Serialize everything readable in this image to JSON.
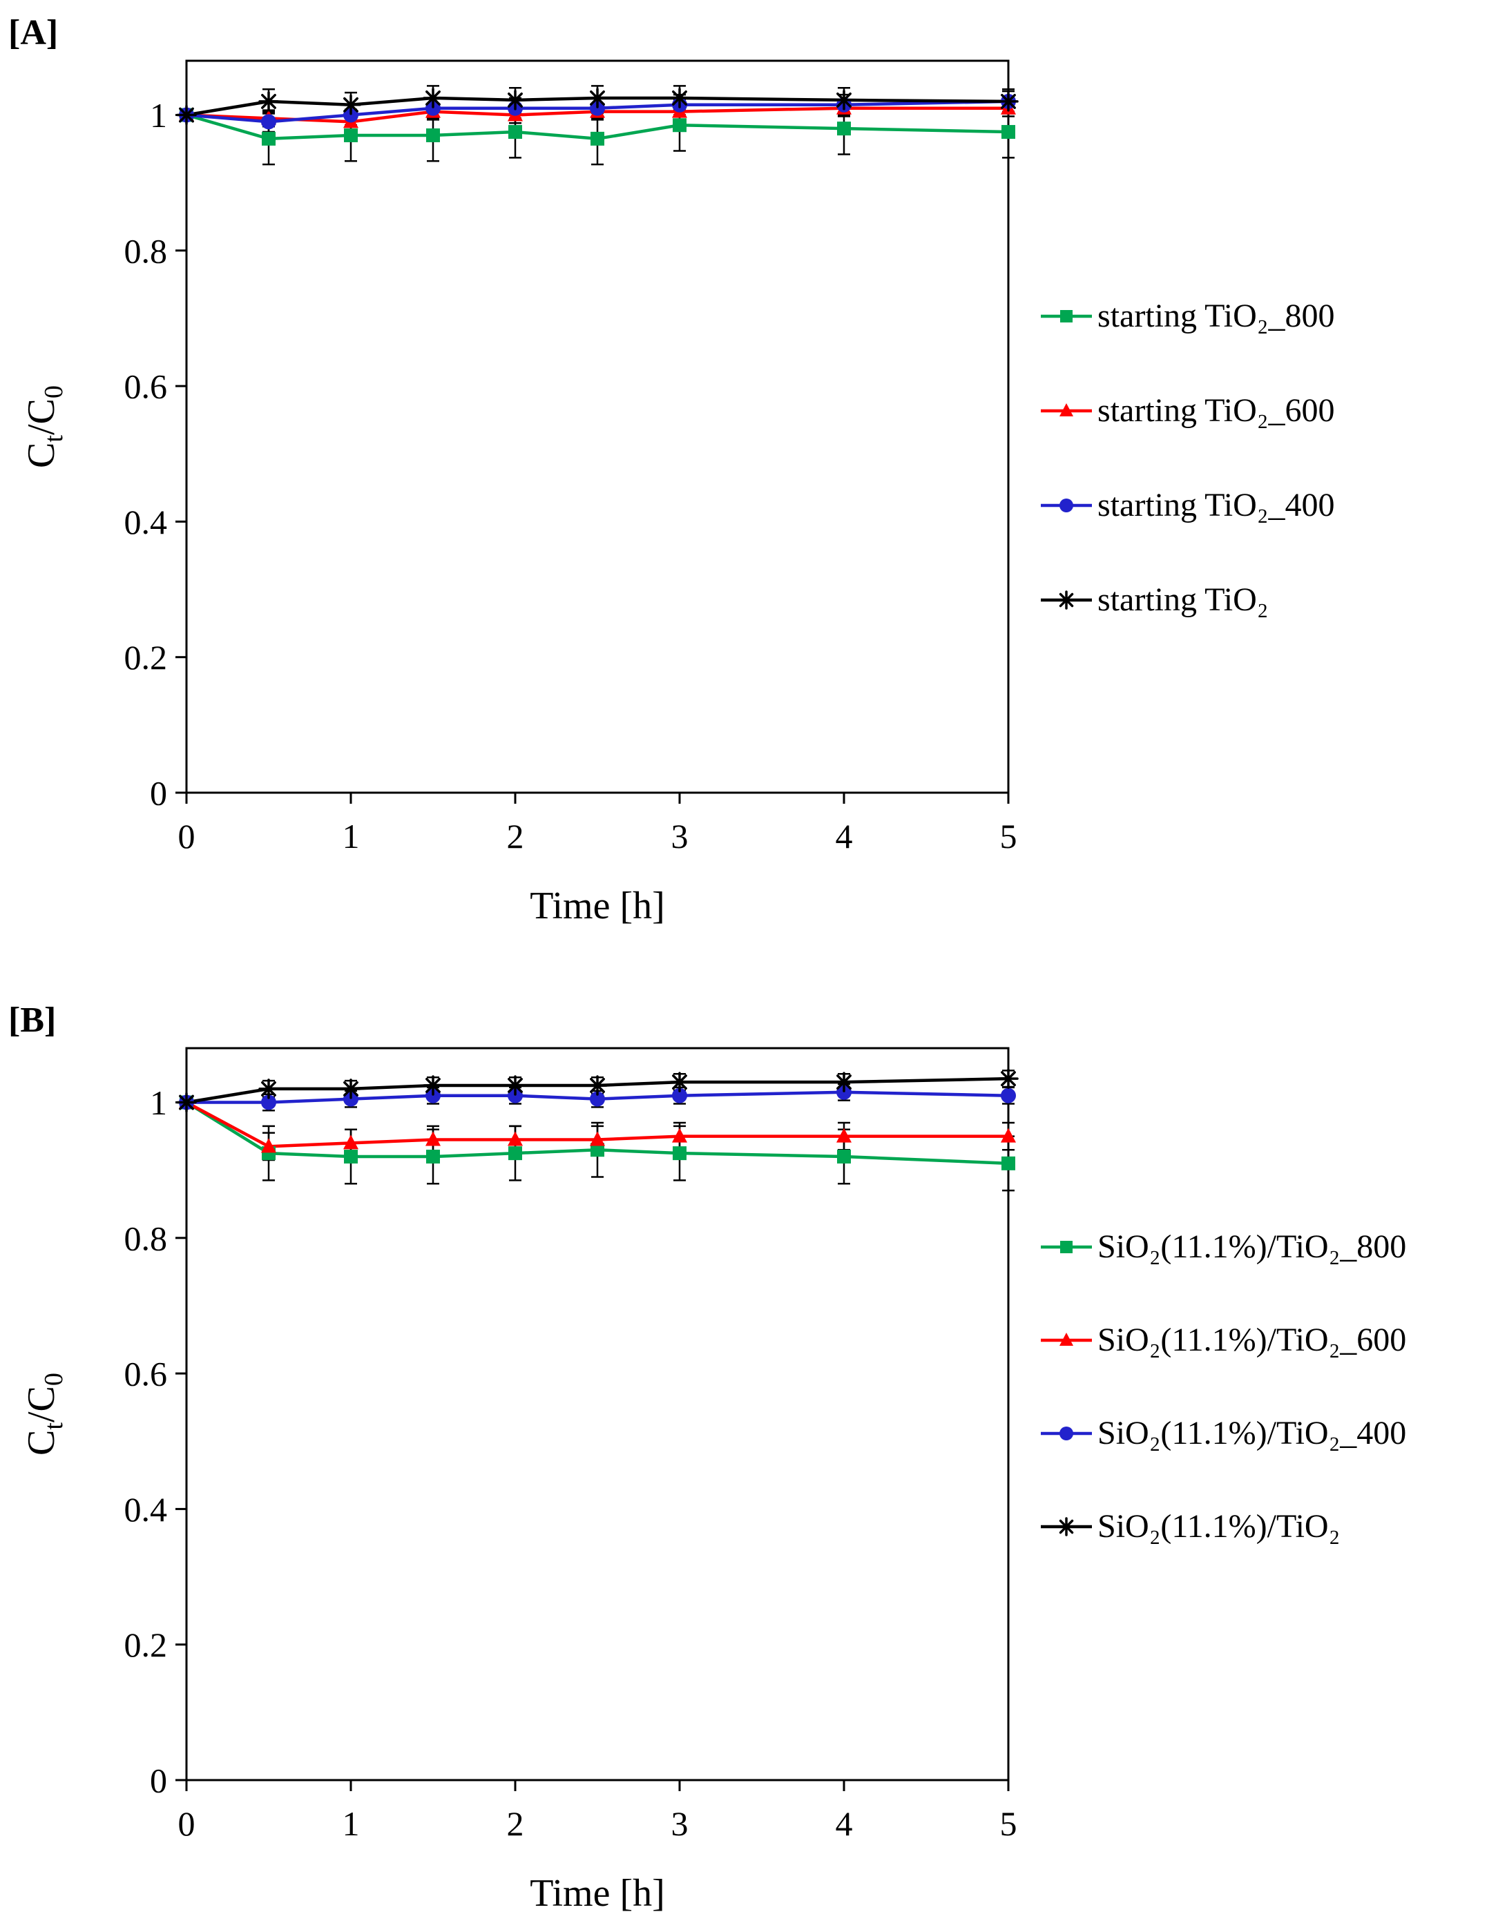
{
  "page": {
    "background": "#ffffff"
  },
  "chart_data": [
    {
      "id": "panel-a",
      "panel_label": "[A]",
      "type": "line",
      "title": "",
      "xlabel": "Time [h]",
      "ylabel": "Ct/C0",
      "ylabel_parts": [
        "C",
        "t",
        "/C",
        "0"
      ],
      "xlim": [
        0,
        5
      ],
      "ylim": [
        0,
        1.08
      ],
      "xticks": [
        0,
        1,
        2,
        3,
        4,
        5
      ],
      "yticks": [
        0,
        0.2,
        0.4,
        0.6,
        0.8,
        1
      ],
      "grid": false,
      "legend_position": "right",
      "x": [
        0,
        0.5,
        1,
        1.5,
        2,
        2.5,
        3,
        4,
        5
      ],
      "series": [
        {
          "name": "starting TiO₂_800",
          "marker": "square",
          "color": "#00A651",
          "values": [
            1.0,
            0.965,
            0.97,
            0.97,
            0.975,
            0.965,
            0.985,
            0.98,
            0.975
          ],
          "error": 0.038
        },
        {
          "name": "starting TiO₂_600",
          "marker": "triangle",
          "color": "#FF0000",
          "values": [
            1.0,
            0.995,
            0.99,
            1.005,
            1.0,
            1.005,
            1.005,
            1.01,
            1.01
          ],
          "error": 0.012
        },
        {
          "name": "starting TiO₂_400",
          "marker": "circle",
          "color": "#2222CC",
          "values": [
            1.0,
            0.99,
            1.0,
            1.01,
            1.01,
            1.01,
            1.015,
            1.015,
            1.02
          ],
          "error": 0.015
        },
        {
          "name": "starting TiO₂",
          "marker": "asterisk",
          "color": "#000000",
          "values": [
            1.0,
            1.02,
            1.015,
            1.025,
            1.022,
            1.025,
            1.025,
            1.022,
            1.02
          ],
          "error": 0.018
        }
      ]
    },
    {
      "id": "panel-b",
      "panel_label": "[B]",
      "type": "line",
      "title": "",
      "xlabel": "Time [h]",
      "ylabel": "Ct/C0",
      "ylabel_parts": [
        "C",
        "t",
        "/C",
        "0"
      ],
      "xlim": [
        0,
        5
      ],
      "ylim": [
        0,
        1.08
      ],
      "xticks": [
        0,
        1,
        2,
        3,
        4,
        5
      ],
      "yticks": [
        0,
        0.2,
        0.4,
        0.6,
        0.8,
        1
      ],
      "grid": false,
      "legend_position": "right",
      "x": [
        0,
        0.5,
        1,
        1.5,
        2,
        2.5,
        3,
        4,
        5
      ],
      "series": [
        {
          "name": "SiO₂(11.1%)/TiO₂_800",
          "marker": "square",
          "color": "#00A651",
          "values": [
            1.0,
            0.925,
            0.92,
            0.92,
            0.925,
            0.93,
            0.925,
            0.92,
            0.91
          ],
          "error": 0.04
        },
        {
          "name": "SiO₂(11.1%)/TiO₂_600",
          "marker": "triangle",
          "color": "#FF0000",
          "values": [
            1.0,
            0.935,
            0.94,
            0.945,
            0.945,
            0.945,
            0.95,
            0.95,
            0.95
          ],
          "error": 0.02
        },
        {
          "name": "SiO₂(11.1%)/TiO₂_400",
          "marker": "circle",
          "color": "#2222CC",
          "values": [
            1.0,
            1.0,
            1.005,
            1.01,
            1.01,
            1.005,
            1.01,
            1.015,
            1.01
          ],
          "error": 0.012
        },
        {
          "name": "SiO₂(11.1%)/TiO₂",
          "marker": "asterisk",
          "color": "#000000",
          "values": [
            1.0,
            1.02,
            1.02,
            1.025,
            1.025,
            1.025,
            1.03,
            1.03,
            1.035
          ],
          "error": 0.012
        }
      ]
    }
  ]
}
